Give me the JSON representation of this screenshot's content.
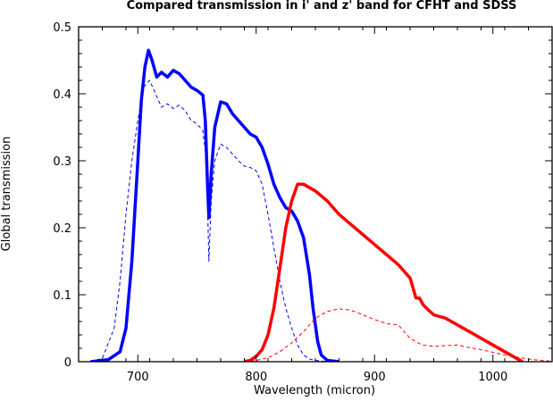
{
  "chart_data": {
    "type": "line",
    "title": "Compared transmission in i' and z' band for CFHT and SDSS",
    "xlabel": "Wavelength (micron)",
    "ylabel": "Global transmission",
    "xlim": [
      650,
      1050
    ],
    "ylim": [
      0,
      0.5
    ],
    "xticks": [
      700,
      800,
      900,
      1000
    ],
    "xtick_labels": [
      "700",
      "800",
      "900",
      "1000"
    ],
    "yticks": [
      0,
      0.1,
      0.2,
      0.3,
      0.4,
      0.5
    ],
    "ytick_labels": [
      "0",
      "0.1",
      "0.2",
      "0.3",
      "0.4",
      "0.5"
    ],
    "grid": false,
    "series": [
      {
        "color": "#0000ff",
        "style": "solid",
        "x": [
          660,
          675,
          685,
          690,
          695,
          700,
          703,
          706,
          709,
          712,
          716,
          720,
          725,
          730,
          735,
          740,
          745,
          750,
          755,
          757,
          759,
          760,
          762,
          765,
          770,
          775,
          780,
          785,
          790,
          795,
          800,
          805,
          810,
          815,
          820,
          825,
          830,
          835,
          840,
          845,
          848,
          852,
          855,
          860,
          870
        ],
        "y": [
          0,
          0.003,
          0.015,
          0.05,
          0.15,
          0.3,
          0.39,
          0.44,
          0.465,
          0.45,
          0.425,
          0.432,
          0.425,
          0.435,
          0.43,
          0.42,
          0.41,
          0.405,
          0.398,
          0.36,
          0.26,
          0.215,
          0.28,
          0.35,
          0.388,
          0.385,
          0.37,
          0.36,
          0.35,
          0.34,
          0.335,
          0.32,
          0.295,
          0.265,
          0.245,
          0.23,
          0.225,
          0.21,
          0.185,
          0.13,
          0.08,
          0.03,
          0.01,
          0.002,
          0
        ]
      },
      {
        "color": "#0000ff",
        "style": "dashed",
        "x": [
          660,
          670,
          680,
          685,
          690,
          695,
          700,
          705,
          710,
          715,
          720,
          725,
          730,
          735,
          740,
          745,
          750,
          755,
          758,
          760,
          762,
          765,
          770,
          775,
          780,
          785,
          790,
          795,
          800,
          805,
          810,
          815,
          820,
          825,
          830,
          835,
          840,
          845,
          850,
          855,
          860
        ],
        "y": [
          0,
          0.005,
          0.05,
          0.12,
          0.22,
          0.3,
          0.36,
          0.41,
          0.42,
          0.4,
          0.38,
          0.385,
          0.378,
          0.383,
          0.375,
          0.36,
          0.355,
          0.345,
          0.3,
          0.15,
          0.24,
          0.3,
          0.325,
          0.32,
          0.31,
          0.3,
          0.292,
          0.29,
          0.285,
          0.265,
          0.22,
          0.17,
          0.12,
          0.08,
          0.05,
          0.025,
          0.01,
          0.004,
          0.002,
          0.001,
          0
        ]
      },
      {
        "color": "#ff0000",
        "style": "solid",
        "x": [
          790,
          795,
          800,
          805,
          810,
          815,
          820,
          825,
          830,
          835,
          840,
          850,
          860,
          870,
          880,
          890,
          900,
          910,
          920,
          930,
          935,
          938,
          941,
          945,
          950,
          960,
          970,
          980,
          990,
          1000,
          1010,
          1020,
          1025
        ],
        "y": [
          0,
          0.002,
          0.008,
          0.018,
          0.04,
          0.08,
          0.14,
          0.2,
          0.24,
          0.265,
          0.265,
          0.255,
          0.24,
          0.22,
          0.205,
          0.19,
          0.175,
          0.16,
          0.145,
          0.125,
          0.095,
          0.095,
          0.085,
          0.078,
          0.07,
          0.065,
          0.055,
          0.045,
          0.035,
          0.025,
          0.015,
          0.005,
          0
        ]
      },
      {
        "color": "#ff0000",
        "style": "dashed",
        "x": [
          790,
          800,
          810,
          820,
          830,
          840,
          850,
          860,
          870,
          880,
          890,
          900,
          910,
          920,
          925,
          930,
          940,
          950,
          960,
          970,
          980,
          990,
          1000,
          1010,
          1020,
          1030,
          1040,
          1048
        ],
        "y": [
          0,
          0.002,
          0.006,
          0.015,
          0.028,
          0.045,
          0.065,
          0.075,
          0.079,
          0.077,
          0.07,
          0.063,
          0.057,
          0.055,
          0.045,
          0.035,
          0.025,
          0.023,
          0.024,
          0.025,
          0.021,
          0.018,
          0.014,
          0.01,
          0.007,
          0.004,
          0.002,
          0.001
        ]
      }
    ]
  }
}
